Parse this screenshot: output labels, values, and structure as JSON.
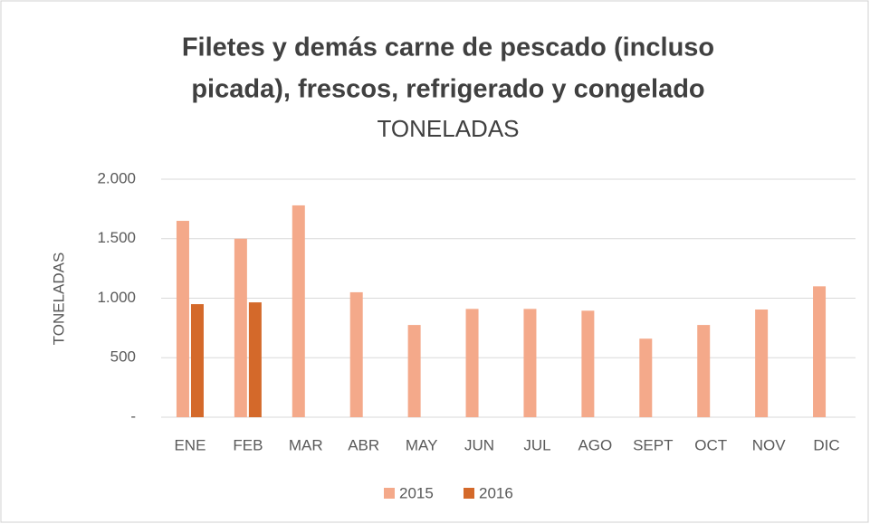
{
  "chart_data": {
    "type": "bar",
    "title": [
      "Filetes y demás carne de pescado (incluso",
      "picada), frescos, refrigerado y congelado"
    ],
    "subtitle": "TONELADAS",
    "y_label": "TONELADAS",
    "categories": [
      "ENE",
      "FEB",
      "MAR",
      "ABR",
      "MAY",
      "JUN",
      "JUL",
      "AGO",
      "SEPT",
      "OCT",
      "NOV",
      "DIC"
    ],
    "series": [
      {
        "name": "2015",
        "color": "#f4a98a",
        "values": [
          1650,
          1500,
          1780,
          1050,
          775,
          910,
          910,
          895,
          660,
          775,
          905,
          1100
        ]
      },
      {
        "name": "2016",
        "color": "#d4692a",
        "values": [
          950,
          965,
          null,
          null,
          null,
          null,
          null,
          null,
          null,
          null,
          null,
          null
        ]
      }
    ],
    "ylim": [
      0,
      2000
    ],
    "yticks": [
      {
        "value": 0,
        "label": "-"
      },
      500,
      {
        "value": 1000,
        "label": "1.000"
      },
      {
        "value": 1500,
        "label": "1.500"
      },
      {
        "value": 2000,
        "label": "2.000"
      }
    ],
    "grid": true,
    "legend": "bottom"
  }
}
